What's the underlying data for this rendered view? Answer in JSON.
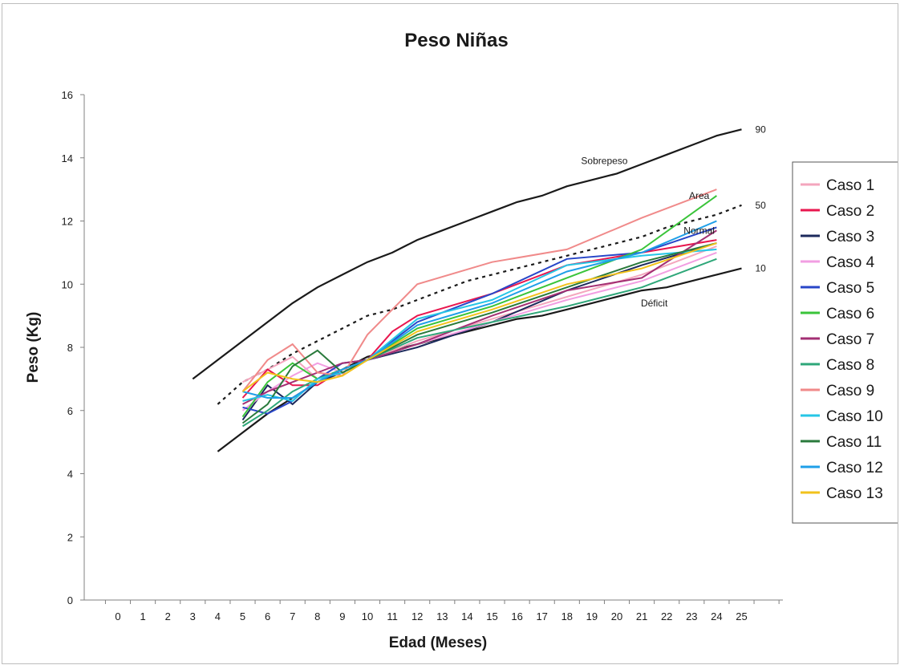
{
  "chart_data": {
    "type": "line",
    "title": "Peso Niñas",
    "xlabel": "Edad (Meses)",
    "ylabel": "Peso (Kg)",
    "x_ticks": [
      "0",
      "1",
      "2",
      "3",
      "4",
      "5",
      "6",
      "7",
      "8",
      "9",
      "10",
      "11",
      "12",
      "13",
      "14",
      "15",
      "16",
      "17",
      "18",
      "19",
      "20",
      "21",
      "22",
      "23",
      "24",
      "25"
    ],
    "ylim": [
      0,
      16
    ],
    "y_ticks": [
      0,
      2,
      4,
      6,
      8,
      10,
      12,
      14,
      16
    ],
    "grid": false,
    "legend_position": "right",
    "annotations": [
      {
        "text": "Sobrepeso",
        "x": 19.5,
        "y": 13.8
      },
      {
        "text": "Area",
        "x": 23.3,
        "y": 12.7
      },
      {
        "text": "Normal",
        "x": 23.3,
        "y": 11.6
      },
      {
        "text": "Déficit",
        "x": 21.5,
        "y": 9.3
      }
    ],
    "reference_curves": [
      {
        "label": "90",
        "color": "#1a1a1a",
        "style": "solid",
        "x": [
          3,
          4,
          5,
          6,
          7,
          8,
          9,
          10,
          11,
          12,
          13,
          14,
          15,
          16,
          17,
          18,
          19,
          20,
          21,
          22,
          23,
          24,
          25
        ],
        "y": [
          7.0,
          7.6,
          8.2,
          8.8,
          9.4,
          9.9,
          10.3,
          10.7,
          11.0,
          11.4,
          11.7,
          12.0,
          12.3,
          12.6,
          12.8,
          13.1,
          13.3,
          13.5,
          13.8,
          14.1,
          14.4,
          14.7,
          14.9
        ]
      },
      {
        "label": "50",
        "color": "#1a1a1a",
        "style": "dotted",
        "x": [
          4,
          5,
          6,
          7,
          8,
          9,
          10,
          11,
          12,
          13,
          14,
          15,
          16,
          17,
          18,
          19,
          20,
          21,
          22,
          23,
          24,
          25
        ],
        "y": [
          6.2,
          6.9,
          7.3,
          7.8,
          8.2,
          8.6,
          9.0,
          9.2,
          9.5,
          9.8,
          10.1,
          10.3,
          10.5,
          10.7,
          10.9,
          11.1,
          11.3,
          11.5,
          11.8,
          12.0,
          12.2,
          12.5
        ]
      },
      {
        "label": "10",
        "color": "#1a1a1a",
        "style": "solid",
        "x": [
          4,
          5,
          6,
          7,
          8,
          9,
          10,
          11,
          12,
          13,
          14,
          15,
          16,
          17,
          18,
          19,
          20,
          21,
          22,
          23,
          24,
          25
        ],
        "y": [
          4.7,
          5.3,
          5.9,
          6.4,
          6.9,
          7.3,
          7.7,
          7.9,
          8.1,
          8.3,
          8.5,
          8.7,
          8.9,
          9.0,
          9.2,
          9.4,
          9.6,
          9.8,
          9.9,
          10.1,
          10.3,
          10.5
        ]
      }
    ],
    "series": [
      {
        "name": "Caso 1",
        "color": "#f4a6bd",
        "x": [
          5,
          6,
          7,
          8,
          9,
          10,
          12,
          15,
          18,
          21,
          24
        ],
        "y": [
          6.9,
          7.3,
          7.7,
          7.0,
          7.5,
          7.6,
          8.2,
          8.9,
          9.6,
          10.3,
          11.2
        ]
      },
      {
        "name": "Caso 2",
        "color": "#e8174f",
        "x": [
          5,
          6,
          7,
          8,
          9,
          10,
          11,
          12,
          15,
          18,
          21,
          24
        ],
        "y": [
          6.4,
          7.3,
          6.8,
          6.8,
          7.3,
          7.6,
          8.5,
          9.0,
          9.7,
          10.6,
          11.0,
          11.4
        ]
      },
      {
        "name": "Caso 3",
        "color": "#1c2a5c",
        "x": [
          5,
          6,
          7,
          8,
          9,
          10,
          12,
          15,
          18,
          21,
          24
        ],
        "y": [
          5.7,
          6.8,
          6.2,
          6.9,
          7.2,
          7.6,
          8.0,
          8.8,
          9.8,
          10.6,
          11.3
        ]
      },
      {
        "name": "Caso 4",
        "color": "#f29ee2",
        "x": [
          5,
          6,
          7,
          8,
          9,
          10,
          12,
          15,
          18,
          21,
          24
        ],
        "y": [
          6.0,
          6.6,
          7.1,
          7.5,
          7.2,
          7.6,
          8.1,
          8.8,
          9.5,
          10.1,
          11.0
        ]
      },
      {
        "name": "Caso 5",
        "color": "#2846c8",
        "x": [
          5,
          6,
          7,
          8,
          9,
          10,
          12,
          15,
          18,
          21,
          24
        ],
        "y": [
          6.1,
          5.9,
          6.3,
          7.0,
          7.5,
          7.6,
          8.8,
          9.7,
          10.8,
          11.0,
          11.8
        ]
      },
      {
        "name": "Caso 6",
        "color": "#3ac43a",
        "x": [
          5,
          6,
          7,
          8,
          9,
          10,
          12,
          15,
          18,
          21,
          24
        ],
        "y": [
          5.8,
          6.9,
          7.5,
          7.0,
          7.3,
          7.6,
          8.6,
          9.3,
          10.2,
          11.1,
          12.8
        ]
      },
      {
        "name": "Caso 7",
        "color": "#a32f73",
        "x": [
          5,
          6,
          7,
          8,
          9,
          10,
          12,
          15,
          18,
          21,
          24
        ],
        "y": [
          6.2,
          6.6,
          6.9,
          7.2,
          7.5,
          7.6,
          8.1,
          9.0,
          9.8,
          10.2,
          11.7
        ]
      },
      {
        "name": "Caso 8",
        "color": "#2ea779",
        "x": [
          5,
          6,
          7,
          8,
          9,
          10,
          12,
          15,
          18,
          21,
          24
        ],
        "y": [
          5.5,
          6.0,
          6.6,
          7.0,
          7.3,
          7.6,
          8.3,
          8.8,
          9.3,
          9.9,
          10.8
        ]
      },
      {
        "name": "Caso 9",
        "color": "#f08a8a",
        "x": [
          5,
          6,
          7,
          8,
          9,
          10,
          11,
          12,
          15,
          18,
          21,
          24
        ],
        "y": [
          6.6,
          7.6,
          8.1,
          7.2,
          7.1,
          8.4,
          9.2,
          10.0,
          10.7,
          11.1,
          12.1,
          13.0
        ]
      },
      {
        "name": "Caso 10",
        "color": "#26c6e6",
        "x": [
          5,
          6,
          7,
          8,
          9,
          10,
          12,
          15,
          18,
          21,
          24
        ],
        "y": [
          6.3,
          6.5,
          6.3,
          7.0,
          7.2,
          7.6,
          8.9,
          9.5,
          10.6,
          10.9,
          11.1
        ]
      },
      {
        "name": "Caso 11",
        "color": "#2a7a3c",
        "x": [
          5,
          6,
          7,
          8,
          9,
          10,
          12,
          15,
          18,
          21,
          24
        ],
        "y": [
          5.6,
          6.2,
          7.4,
          7.9,
          7.2,
          7.6,
          8.4,
          9.1,
          9.9,
          10.7,
          11.3
        ]
      },
      {
        "name": "Caso 12",
        "color": "#1f9fe8",
        "x": [
          5,
          6,
          7,
          8,
          9,
          10,
          12,
          15,
          18,
          21,
          24
        ],
        "y": [
          6.6,
          6.4,
          6.4,
          6.9,
          7.3,
          7.6,
          8.7,
          9.4,
          10.4,
          11.0,
          12.0
        ]
      },
      {
        "name": "Caso 13",
        "color": "#f2c21c",
        "x": [
          5,
          6,
          7,
          8,
          9,
          10,
          12,
          15,
          18,
          21,
          24
        ],
        "y": [
          6.6,
          7.2,
          7.0,
          6.9,
          7.1,
          7.6,
          8.5,
          9.2,
          10.0,
          10.5,
          11.3
        ]
      }
    ]
  }
}
